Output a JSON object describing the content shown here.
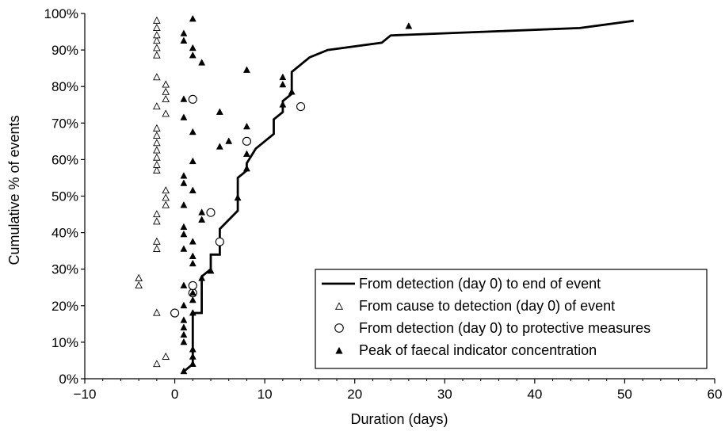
{
  "chart_data": {
    "type": "scatter",
    "title": "",
    "xlabel": "Duration (days)",
    "ylabel": "Cumulative % of events",
    "xlim": [
      -10,
      60
    ],
    "ylim": [
      0,
      100
    ],
    "x_ticks": [
      -10,
      0,
      10,
      20,
      30,
      40,
      50,
      60
    ],
    "x_tick_labels": [
      "−10",
      "0",
      "10",
      "20",
      "30",
      "40",
      "50",
      "60"
    ],
    "y_ticks": [
      0,
      10,
      20,
      30,
      40,
      50,
      60,
      70,
      80,
      90,
      100
    ],
    "y_tick_labels": [
      "0%",
      "10%",
      "20%",
      "30%",
      "40%",
      "50%",
      "60%",
      "70%",
      "80%",
      "90%",
      "100%"
    ],
    "grid": false,
    "legend_position": "bottom-right",
    "series": [
      {
        "name": "From detection (day 0) to end of event",
        "kind": "step-line",
        "color": "#000000",
        "points": [
          [
            1,
            2
          ],
          [
            2,
            4
          ],
          [
            2,
            18
          ],
          [
            3,
            18
          ],
          [
            3,
            28
          ],
          [
            4,
            30
          ],
          [
            4,
            34
          ],
          [
            5,
            34
          ],
          [
            5,
            41
          ],
          [
            7,
            46
          ],
          [
            7,
            55
          ],
          [
            8,
            57
          ],
          [
            8,
            59
          ],
          [
            9,
            63
          ],
          [
            11,
            67
          ],
          [
            11,
            71
          ],
          [
            12,
            73
          ],
          [
            12,
            76
          ],
          [
            13,
            78
          ],
          [
            13,
            84
          ],
          [
            15,
            88
          ],
          [
            17,
            90
          ],
          [
            23,
            92
          ],
          [
            24,
            94
          ],
          [
            45,
            96
          ],
          [
            51,
            98
          ]
        ]
      },
      {
        "name": "From cause to detection (day 0) of event",
        "kind": "open-triangle",
        "color": "#000000",
        "points": [
          [
            -2,
            4
          ],
          [
            -1,
            6
          ],
          [
            -2,
            18
          ],
          [
            -4,
            25.5
          ],
          [
            -4,
            27.5
          ],
          [
            -2,
            35.5
          ],
          [
            -2,
            37.5
          ],
          [
            -2,
            43
          ],
          [
            -2,
            45
          ],
          [
            -1,
            47.5
          ],
          [
            -1,
            49.5
          ],
          [
            -1,
            51.5
          ],
          [
            -2,
            57
          ],
          [
            -2,
            58.5
          ],
          [
            -2,
            60.5
          ],
          [
            -2,
            62.5
          ],
          [
            -2,
            64.5
          ],
          [
            -2,
            66.5
          ],
          [
            -2,
            68.5
          ],
          [
            -1,
            72.5
          ],
          [
            -2,
            74.5
          ],
          [
            -1,
            76.5
          ],
          [
            -1,
            78.5
          ],
          [
            -1,
            80.5
          ],
          [
            -2,
            82.5
          ],
          [
            -2,
            88.5
          ],
          [
            -2,
            90.5
          ],
          [
            -2,
            92.5
          ],
          [
            -2,
            94
          ],
          [
            -2,
            96
          ],
          [
            -2,
            98
          ]
        ]
      },
      {
        "name": "From detection (day 0) to protective measures",
        "kind": "open-circle",
        "color": "#000000",
        "points": [
          [
            0,
            18
          ],
          [
            2,
            23.5
          ],
          [
            2,
            25.5
          ],
          [
            5,
            37.5
          ],
          [
            4,
            45.5
          ],
          [
            8,
            65
          ],
          [
            14,
            74.5
          ],
          [
            2,
            76.5
          ]
        ]
      },
      {
        "name": "Peak of faecal indicator concentration",
        "kind": "filled-triangle",
        "color": "#000000",
        "points": [
          [
            1,
            2
          ],
          [
            2,
            4
          ],
          [
            2,
            6
          ],
          [
            2,
            8
          ],
          [
            1,
            10
          ],
          [
            1,
            12
          ],
          [
            1,
            14
          ],
          [
            1,
            16
          ],
          [
            2,
            18
          ],
          [
            1,
            20
          ],
          [
            2,
            21.5
          ],
          [
            2,
            23.5
          ],
          [
            1,
            25.5
          ],
          [
            3,
            27.5
          ],
          [
            4,
            29.5
          ],
          [
            2,
            31.5
          ],
          [
            2,
            33.5
          ],
          [
            1,
            35.5
          ],
          [
            2,
            37.5
          ],
          [
            1,
            39.5
          ],
          [
            1,
            41.5
          ],
          [
            3,
            43.5
          ],
          [
            3,
            45.5
          ],
          [
            1,
            47.5
          ],
          [
            7,
            49.5
          ],
          [
            2,
            51.5
          ],
          [
            1,
            53.5
          ],
          [
            1,
            55.5
          ],
          [
            8,
            57.5
          ],
          [
            2,
            59.5
          ],
          [
            8,
            61.5
          ],
          [
            5,
            63.5
          ],
          [
            6,
            65
          ],
          [
            2,
            67.5
          ],
          [
            8,
            69
          ],
          [
            1,
            71.5
          ],
          [
            5,
            73
          ],
          [
            12,
            75
          ],
          [
            1,
            76.5
          ],
          [
            13,
            78.5
          ],
          [
            12,
            80.5
          ],
          [
            12,
            82.5
          ],
          [
            8,
            84.5
          ],
          [
            3,
            86.5
          ],
          [
            2,
            88.5
          ],
          [
            2,
            90.5
          ],
          [
            1,
            92.5
          ],
          [
            1,
            94.5
          ],
          [
            26,
            96.5
          ],
          [
            2,
            98.5
          ]
        ]
      }
    ]
  }
}
